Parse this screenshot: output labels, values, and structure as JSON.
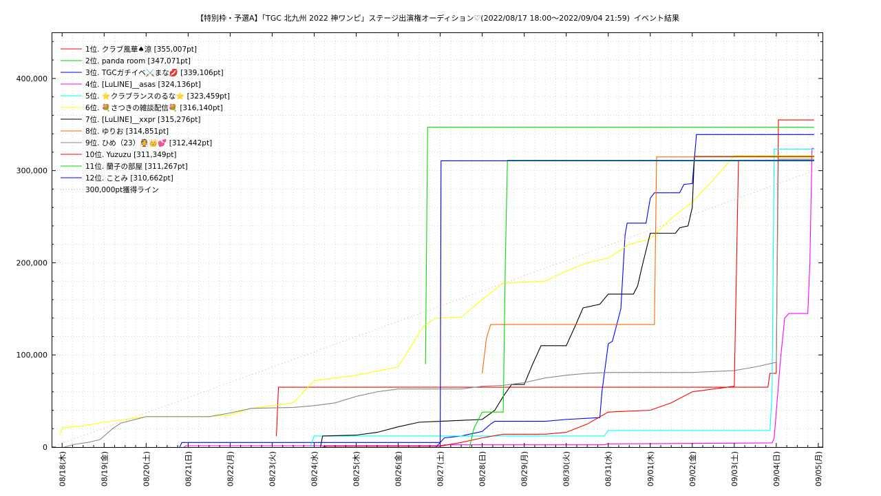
{
  "chart_data": {
    "type": "line",
    "title": "【特別枠・予選A】「TGC 北九州 2022 神ワンピ」ステージ出演権オーディション♡(2022/08/17 18:00〜2022/09/04 21:59)",
    "subtitle": "イベント結果",
    "x_labels": [
      "08/18(木)",
      "08/19(金)",
      "08/20(土)",
      "08/21(日)",
      "08/22(月)",
      "08/23(火)",
      "08/24(水)",
      "08/25(木)",
      "08/26(金)",
      "08/27(土)",
      "08/28(日)",
      "08/29(月)",
      "08/30(火)",
      "08/31(水)",
      "09/01(木)",
      "09/02(金)",
      "09/03(土)",
      "09/04(日)",
      "09/05(月)"
    ],
    "xlim": [
      -0.25,
      18.1
    ],
    "y_ticks": [
      0,
      100000,
      200000,
      300000,
      400000
    ],
    "y_tick_labels": [
      "0",
      "100,000",
      "200,000",
      "300,000",
      "400,000"
    ],
    "ylim": [
      0,
      450000
    ],
    "grid": true,
    "legend_position": "top-left",
    "series": [
      {
        "name": "1位. クラブ風華♠涼 [355,007pt]",
        "color": "#ff0000",
        "points": [
          [
            5.1,
            12000
          ],
          [
            5.15,
            65000
          ],
          [
            16.8,
            65000
          ],
          [
            16.85,
            80000
          ],
          [
            17.0,
            80000
          ],
          [
            17.05,
            355007
          ],
          [
            17.9,
            355007
          ]
        ]
      },
      {
        "name": "2位. panda room [347,071pt]",
        "color": "#00dd00",
        "points": [
          [
            8.65,
            90000
          ],
          [
            8.7,
            347071
          ],
          [
            17.9,
            347071
          ]
        ]
      },
      {
        "name": "3位. TGCガチイベ⚔️まな💋 [339,106pt]",
        "color": "#0000ff",
        "points": [
          [
            2.8,
            0
          ],
          [
            2.85,
            5000
          ],
          [
            6.8,
            5000
          ],
          [
            7.2,
            5000
          ],
          [
            9.0,
            5000
          ],
          [
            9.1,
            10000
          ],
          [
            9.5,
            12000
          ],
          [
            9.8,
            15000
          ],
          [
            10.0,
            17000
          ],
          [
            10.2,
            25000
          ],
          [
            10.3,
            28000
          ],
          [
            11.5,
            28000
          ],
          [
            12.0,
            30000
          ],
          [
            12.8,
            32000
          ],
          [
            12.85,
            60000
          ],
          [
            13.0,
            112000
          ],
          [
            13.1,
            115000
          ],
          [
            13.3,
            150000
          ],
          [
            13.4,
            230000
          ],
          [
            13.45,
            243000
          ],
          [
            13.9,
            243000
          ],
          [
            14.0,
            270000
          ],
          [
            14.1,
            276000
          ],
          [
            14.7,
            276000
          ],
          [
            14.8,
            285000
          ],
          [
            15.0,
            286000
          ],
          [
            15.1,
            339106
          ],
          [
            17.9,
            339106
          ]
        ]
      },
      {
        "name": "4位. [LuLINE]__asas [324,136pt]",
        "color": "#ff00ff",
        "points": [
          [
            2.9,
            0
          ],
          [
            2.95,
            1500
          ],
          [
            9.0,
            1500
          ],
          [
            9.1,
            2500
          ],
          [
            12.9,
            2500
          ],
          [
            13.0,
            3500
          ],
          [
            16.9,
            4500
          ],
          [
            16.95,
            10000
          ],
          [
            17.1,
            95000
          ],
          [
            17.2,
            140000
          ],
          [
            17.3,
            145000
          ],
          [
            17.75,
            145000
          ],
          [
            17.8,
            200000
          ],
          [
            17.85,
            324136
          ],
          [
            17.9,
            324136
          ]
        ]
      },
      {
        "name": "5位. ⭐クラブランスのるな⭐ [323,459pt]",
        "color": "#00ffff",
        "points": [
          [
            5.9,
            0
          ],
          [
            6.0,
            12000
          ],
          [
            12.9,
            12000
          ],
          [
            13.0,
            18000
          ],
          [
            16.85,
            18000
          ],
          [
            16.9,
            60000
          ],
          [
            16.95,
            323459
          ],
          [
            17.9,
            323459
          ]
        ]
      },
      {
        "name": "6位. 💐さつきの雑談配信💐 [316,140pt]",
        "color": "#ffff00",
        "points": [
          [
            -0.05,
            13000
          ],
          [
            0.0,
            21000
          ],
          [
            0.5,
            23000
          ],
          [
            1.0,
            27000
          ],
          [
            1.5,
            30000
          ],
          [
            2.0,
            33000
          ],
          [
            3.5,
            33000
          ],
          [
            4.0,
            35000
          ],
          [
            4.5,
            42000
          ],
          [
            5.0,
            45000
          ],
          [
            5.5,
            48000
          ],
          [
            6.0,
            72000
          ],
          [
            6.5,
            75000
          ],
          [
            7.0,
            78000
          ],
          [
            8.0,
            87000
          ],
          [
            8.6,
            131000
          ],
          [
            8.9,
            140000
          ],
          [
            9.5,
            141000
          ],
          [
            10.0,
            160000
          ],
          [
            10.5,
            178000
          ],
          [
            11.5,
            180000
          ],
          [
            12.0,
            191000
          ],
          [
            12.5,
            200000
          ],
          [
            13.0,
            205000
          ],
          [
            13.5,
            220000
          ],
          [
            14.0,
            226000
          ],
          [
            14.5,
            248000
          ],
          [
            15.0,
            266000
          ],
          [
            15.5,
            290000
          ],
          [
            16.0,
            316140
          ],
          [
            17.9,
            316140
          ]
        ]
      },
      {
        "name": "7位. [LuLINE]__xxpr [315,276pt]",
        "color": "#000000",
        "points": [
          [
            6.15,
            0
          ],
          [
            6.2,
            12000
          ],
          [
            7.0,
            13000
          ],
          [
            7.5,
            16000
          ],
          [
            8.0,
            22000
          ],
          [
            8.5,
            27000
          ],
          [
            9.0,
            28000
          ],
          [
            9.5,
            29000
          ],
          [
            10.0,
            30000
          ],
          [
            10.3,
            40000
          ],
          [
            10.5,
            55000
          ],
          [
            10.7,
            68000
          ],
          [
            11.0,
            68000
          ],
          [
            11.2,
            90000
          ],
          [
            11.4,
            110000
          ],
          [
            12.0,
            110000
          ],
          [
            12.2,
            130000
          ],
          [
            12.4,
            151000
          ],
          [
            12.8,
            155000
          ],
          [
            13.0,
            166000
          ],
          [
            13.6,
            166000
          ],
          [
            13.7,
            175000
          ],
          [
            13.8,
            195000
          ],
          [
            14.0,
            232000
          ],
          [
            14.6,
            232000
          ],
          [
            14.7,
            238000
          ],
          [
            14.9,
            240000
          ],
          [
            15.0,
            260000
          ],
          [
            15.05,
            315276
          ],
          [
            17.9,
            315276
          ]
        ]
      },
      {
        "name": "8位. ゆりお [314,851pt]",
        "color": "#ff6600",
        "points": [
          [
            10.0,
            80000
          ],
          [
            10.1,
            118000
          ],
          [
            10.2,
            133000
          ],
          [
            14.1,
            133000
          ],
          [
            14.15,
            314851
          ],
          [
            17.9,
            314851
          ]
        ]
      },
      {
        "name": "9位. ひめ（23）👰👑💕 [312,442pt]",
        "color": "#888888",
        "points": [
          [
            0.05,
            0
          ],
          [
            0.3,
            3000
          ],
          [
            0.6,
            5000
          ],
          [
            0.9,
            8000
          ],
          [
            1.0,
            12000
          ],
          [
            1.2,
            20000
          ],
          [
            1.4,
            26000
          ],
          [
            2.0,
            33000
          ],
          [
            3.5,
            33000
          ],
          [
            4.0,
            37000
          ],
          [
            4.5,
            42000
          ],
          [
            5.5,
            43000
          ],
          [
            6.0,
            45000
          ],
          [
            6.5,
            48000
          ],
          [
            7.0,
            55000
          ],
          [
            7.5,
            60000
          ],
          [
            8.0,
            63000
          ],
          [
            9.5,
            63000
          ],
          [
            10.0,
            66000
          ],
          [
            10.5,
            67000
          ],
          [
            11.0,
            70000
          ],
          [
            11.5,
            75000
          ],
          [
            12.0,
            78000
          ],
          [
            12.5,
            80000
          ],
          [
            13.0,
            81000
          ],
          [
            15.0,
            81000
          ],
          [
            16.0,
            83000
          ],
          [
            16.5,
            87000
          ],
          [
            17.0,
            92000
          ],
          [
            17.05,
            312442
          ],
          [
            17.9,
            312442
          ]
        ]
      },
      {
        "name": "10位. Yuzuzu [311,349pt]",
        "color": "#ff0000",
        "points": [
          [
            6.2,
            0
          ],
          [
            6.3,
            1000
          ],
          [
            9.0,
            1000
          ],
          [
            9.5,
            5000
          ],
          [
            10.0,
            10000
          ],
          [
            10.5,
            14000
          ],
          [
            11.0,
            14000
          ],
          [
            11.5,
            14000
          ],
          [
            12.0,
            16000
          ],
          [
            12.5,
            25000
          ],
          [
            13.0,
            38000
          ],
          [
            14.0,
            40000
          ],
          [
            14.5,
            48000
          ],
          [
            15.0,
            60000
          ],
          [
            15.5,
            63000
          ],
          [
            16.0,
            66000
          ],
          [
            16.1,
            311349
          ],
          [
            17.9,
            311349
          ]
        ]
      },
      {
        "name": "11位. 蘭子の部屋 [311,267pt]",
        "color": "#00dd00",
        "points": [
          [
            9.7,
            0
          ],
          [
            9.8,
            20000
          ],
          [
            10.0,
            38000
          ],
          [
            10.5,
            38000
          ],
          [
            10.55,
            200000
          ],
          [
            10.6,
            311267
          ],
          [
            17.9,
            311267
          ]
        ]
      },
      {
        "name": "12位. ことみ [310,662pt]",
        "color": "#0000ff",
        "points": [
          [
            8.9,
            0
          ],
          [
            9.0,
            5000
          ],
          [
            9.02,
            310662
          ],
          [
            17.9,
            310662
          ]
        ]
      },
      {
        "name": "300,000pt獲得ライン",
        "color": "#ff9999",
        "dashed": true,
        "points": [
          [
            -0.25,
            0
          ],
          [
            17.9,
            300000
          ]
        ]
      }
    ]
  }
}
